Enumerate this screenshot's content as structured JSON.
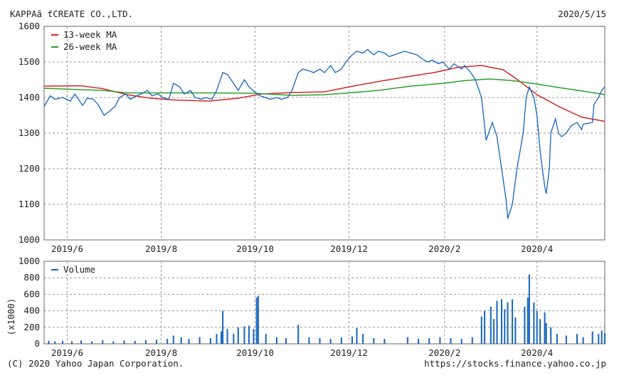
{
  "header": {
    "company": "KAPPAă ťCREATE CO.,LTD.",
    "date": "2020/5/15"
  },
  "footer": {
    "copyright": "(C) 2020 Yahoo Japan Corporation.",
    "url": "https://stocks.finance.yahoo.co.jp"
  },
  "colors": {
    "price": "#1565c0",
    "ma13": "#d62728",
    "ma26": "#2ca02c",
    "volume": "#1565c0",
    "grid": "#9a9a9a"
  },
  "chart_data": [
    {
      "type": "line",
      "yticks": [
        1000,
        1100,
        1200,
        1300,
        1400,
        1500,
        1600
      ],
      "ylim": [
        1000,
        1600
      ],
      "xticks": [
        "2019/6",
        "2019/8",
        "2019/10",
        "2019/12",
        "2020/2",
        "2020/4"
      ],
      "xtick_dates": [
        "2019-06-01",
        "2019-08-01",
        "2019-10-01",
        "2019-12-01",
        "2020-02-01",
        "2020-04-01"
      ],
      "xlim": [
        "2019-05-17",
        "2020-05-15"
      ],
      "grid": true,
      "legend": "top-left",
      "series": [
        {
          "name": "13-week MA",
          "points": [
            [
              "2019-05-17",
              1432
            ],
            [
              "2019-06-10",
              1433
            ],
            [
              "2019-06-24",
              1425
            ],
            [
              "2019-07-10",
              1408
            ],
            [
              "2019-07-25",
              1398
            ],
            [
              "2019-08-10",
              1393
            ],
            [
              "2019-09-01",
              1390
            ],
            [
              "2019-09-20",
              1398
            ],
            [
              "2019-10-05",
              1410
            ],
            [
              "2019-10-25",
              1414
            ],
            [
              "2019-11-15",
              1416
            ],
            [
              "2019-12-01",
              1430
            ],
            [
              "2019-12-20",
              1445
            ],
            [
              "2020-01-10",
              1460
            ],
            [
              "2020-01-25",
              1470
            ],
            [
              "2020-02-10",
              1485
            ],
            [
              "2020-02-25",
              1490
            ],
            [
              "2020-03-10",
              1478
            ],
            [
              "2020-03-20",
              1448
            ],
            [
              "2020-04-01",
              1408
            ],
            [
              "2020-04-15",
              1375
            ],
            [
              "2020-04-30",
              1345
            ],
            [
              "2020-05-15",
              1333
            ]
          ]
        },
        {
          "name": "26-week MA",
          "points": [
            [
              "2019-05-17",
              1426
            ],
            [
              "2019-06-10",
              1422
            ],
            [
              "2019-06-24",
              1420
            ],
            [
              "2019-07-10",
              1413
            ],
            [
              "2019-08-01",
              1413
            ],
            [
              "2019-09-01",
              1413
            ],
            [
              "2019-10-01",
              1412
            ],
            [
              "2019-10-25",
              1406
            ],
            [
              "2019-11-15",
              1408
            ],
            [
              "2019-12-01",
              1413
            ],
            [
              "2019-12-20",
              1420
            ],
            [
              "2020-01-10",
              1432
            ],
            [
              "2020-01-31",
              1440
            ],
            [
              "2020-02-15",
              1448
            ],
            [
              "2020-03-01",
              1452
            ],
            [
              "2020-03-15",
              1448
            ],
            [
              "2020-04-01",
              1438
            ],
            [
              "2020-04-15",
              1428
            ],
            [
              "2020-05-01",
              1418
            ],
            [
              "2020-05-15",
              1408
            ]
          ]
        },
        {
          "name": "",
          "points": [
            [
              "2019-05-17",
              1375
            ],
            [
              "2019-05-21",
              1405
            ],
            [
              "2019-05-24",
              1395
            ],
            [
              "2019-05-29",
              1400
            ],
            [
              "2019-06-03",
              1390
            ],
            [
              "2019-06-06",
              1410
            ],
            [
              "2019-06-11",
              1378
            ],
            [
              "2019-06-14",
              1398
            ],
            [
              "2019-06-18",
              1395
            ],
            [
              "2019-06-21",
              1380
            ],
            [
              "2019-06-25",
              1350
            ],
            [
              "2019-06-28",
              1360
            ],
            [
              "2019-07-02",
              1375
            ],
            [
              "2019-07-05",
              1400
            ],
            [
              "2019-07-09",
              1410
            ],
            [
              "2019-07-12",
              1395
            ],
            [
              "2019-07-16",
              1405
            ],
            [
              "2019-07-19",
              1410
            ],
            [
              "2019-07-23",
              1420
            ],
            [
              "2019-07-26",
              1405
            ],
            [
              "2019-07-30",
              1410
            ],
            [
              "2019-08-02",
              1400
            ],
            [
              "2019-08-06",
              1395
            ],
            [
              "2019-08-09",
              1440
            ],
            [
              "2019-08-13",
              1430
            ],
            [
              "2019-08-16",
              1410
            ],
            [
              "2019-08-20",
              1420
            ],
            [
              "2019-08-23",
              1400
            ],
            [
              "2019-08-27",
              1395
            ],
            [
              "2019-08-30",
              1400
            ],
            [
              "2019-09-03",
              1395
            ],
            [
              "2019-09-06",
              1420
            ],
            [
              "2019-09-10",
              1470
            ],
            [
              "2019-09-13",
              1465
            ],
            [
              "2019-09-17",
              1440
            ],
            [
              "2019-09-20",
              1420
            ],
            [
              "2019-09-24",
              1450
            ],
            [
              "2019-09-27",
              1430
            ],
            [
              "2019-10-01",
              1415
            ],
            [
              "2019-10-04",
              1405
            ],
            [
              "2019-10-08",
              1400
            ],
            [
              "2019-10-11",
              1395
            ],
            [
              "2019-10-15",
              1400
            ],
            [
              "2019-10-18",
              1395
            ],
            [
              "2019-10-22",
              1400
            ],
            [
              "2019-10-25",
              1420
            ],
            [
              "2019-10-29",
              1470
            ],
            [
              "2019-11-01",
              1480
            ],
            [
              "2019-11-05",
              1475
            ],
            [
              "2019-11-08",
              1470
            ],
            [
              "2019-11-12",
              1480
            ],
            [
              "2019-11-15",
              1470
            ],
            [
              "2019-11-19",
              1490
            ],
            [
              "2019-11-22",
              1470
            ],
            [
              "2019-11-26",
              1480
            ],
            [
              "2019-11-29",
              1500
            ],
            [
              "2019-12-03",
              1520
            ],
            [
              "2019-12-06",
              1530
            ],
            [
              "2019-12-10",
              1525
            ],
            [
              "2019-12-13",
              1535
            ],
            [
              "2019-12-17",
              1520
            ],
            [
              "2019-12-20",
              1530
            ],
            [
              "2019-12-24",
              1525
            ],
            [
              "2019-12-27",
              1515
            ],
            [
              "2020-01-06",
              1530
            ],
            [
              "2020-01-10",
              1525
            ],
            [
              "2020-01-14",
              1520
            ],
            [
              "2020-01-17",
              1510
            ],
            [
              "2020-01-21",
              1500
            ],
            [
              "2020-01-24",
              1505
            ],
            [
              "2020-01-28",
              1495
            ],
            [
              "2020-01-31",
              1500
            ],
            [
              "2020-02-04",
              1480
            ],
            [
              "2020-02-07",
              1495
            ],
            [
              "2020-02-12",
              1480
            ],
            [
              "2020-02-14",
              1490
            ],
            [
              "2020-02-18",
              1470
            ],
            [
              "2020-02-21",
              1450
            ],
            [
              "2020-02-25",
              1400
            ],
            [
              "2020-02-28",
              1280
            ],
            [
              "2020-03-03",
              1330
            ],
            [
              "2020-03-06",
              1290
            ],
            [
              "2020-03-09",
              1200
            ],
            [
              "2020-03-12",
              1110
            ],
            [
              "2020-03-13",
              1060
            ],
            [
              "2020-03-16",
              1100
            ],
            [
              "2020-03-19",
              1200
            ],
            [
              "2020-03-23",
              1300
            ],
            [
              "2020-03-25",
              1400
            ],
            [
              "2020-03-27",
              1430
            ],
            [
              "2020-03-30",
              1400
            ],
            [
              "2020-04-01",
              1350
            ],
            [
              "2020-04-03",
              1250
            ],
            [
              "2020-04-06",
              1150
            ],
            [
              "2020-04-07",
              1130
            ],
            [
              "2020-04-09",
              1200
            ],
            [
              "2020-04-10",
              1300
            ],
            [
              "2020-04-13",
              1340
            ],
            [
              "2020-04-15",
              1300
            ],
            [
              "2020-04-17",
              1290
            ],
            [
              "2020-04-20",
              1300
            ],
            [
              "2020-04-23",
              1320
            ],
            [
              "2020-04-27",
              1330
            ],
            [
              "2020-04-30",
              1310
            ],
            [
              "2020-05-01",
              1325
            ],
            [
              "2020-05-07",
              1330
            ],
            [
              "2020-05-08",
              1380
            ],
            [
              "2020-05-11",
              1400
            ],
            [
              "2020-05-13",
              1420
            ],
            [
              "2020-05-15",
              1430
            ]
          ]
        }
      ]
    },
    {
      "type": "bar",
      "ylabel": "(x1000)",
      "yticks": [
        0,
        200,
        400,
        600,
        800,
        1000
      ],
      "ylim": [
        0,
        1000
      ],
      "xticks": [
        "2019/6",
        "2019/8",
        "2019/10",
        "2019/12",
        "2020/2",
        "2020/4"
      ],
      "xtick_dates": [
        "2019-06-01",
        "2019-08-01",
        "2019-10-01",
        "2019-12-01",
        "2020-02-01",
        "2020-04-01"
      ],
      "xlim": [
        "2019-05-17",
        "2020-05-15"
      ],
      "grid": true,
      "legend": "top-left",
      "series": [
        {
          "name": "Volume",
          "points": [
            [
              "2019-05-20",
              40
            ],
            [
              "2019-05-24",
              30
            ],
            [
              "2019-05-29",
              35
            ],
            [
              "2019-06-04",
              30
            ],
            [
              "2019-06-10",
              40
            ],
            [
              "2019-06-17",
              30
            ],
            [
              "2019-06-24",
              45
            ],
            [
              "2019-07-01",
              30
            ],
            [
              "2019-07-08",
              40
            ],
            [
              "2019-07-15",
              35
            ],
            [
              "2019-07-22",
              45
            ],
            [
              "2019-07-29",
              50
            ],
            [
              "2019-08-05",
              60
            ],
            [
              "2019-08-09",
              100
            ],
            [
              "2019-08-14",
              80
            ],
            [
              "2019-08-19",
              60
            ],
            [
              "2019-08-26",
              80
            ],
            [
              "2019-09-02",
              70
            ],
            [
              "2019-09-06",
              120
            ],
            [
              "2019-09-09",
              150
            ],
            [
              "2019-09-10",
              400
            ],
            [
              "2019-09-13",
              180
            ],
            [
              "2019-09-17",
              120
            ],
            [
              "2019-09-20",
              200
            ],
            [
              "2019-09-24",
              210
            ],
            [
              "2019-09-27",
              220
            ],
            [
              "2019-09-30",
              180
            ],
            [
              "2019-10-02",
              560
            ],
            [
              "2019-10-03",
              580
            ],
            [
              "2019-10-08",
              120
            ],
            [
              "2019-10-15",
              80
            ],
            [
              "2019-10-21",
              70
            ],
            [
              "2019-10-29",
              230
            ],
            [
              "2019-11-05",
              80
            ],
            [
              "2019-11-12",
              70
            ],
            [
              "2019-11-19",
              60
            ],
            [
              "2019-11-26",
              80
            ],
            [
              "2019-12-03",
              90
            ],
            [
              "2019-12-06",
              190
            ],
            [
              "2019-12-10",
              120
            ],
            [
              "2019-12-17",
              70
            ],
            [
              "2019-12-24",
              60
            ],
            [
              "2020-01-08",
              80
            ],
            [
              "2020-01-15",
              60
            ],
            [
              "2020-01-22",
              70
            ],
            [
              "2020-01-29",
              80
            ],
            [
              "2020-02-05",
              70
            ],
            [
              "2020-02-12",
              60
            ],
            [
              "2020-02-19",
              80
            ],
            [
              "2020-02-25",
              330
            ],
            [
              "2020-02-27",
              400
            ],
            [
              "2020-03-02",
              450
            ],
            [
              "2020-03-04",
              300
            ],
            [
              "2020-03-06",
              520
            ],
            [
              "2020-03-09",
              540
            ],
            [
              "2020-03-11",
              420
            ],
            [
              "2020-03-13",
              500
            ],
            [
              "2020-03-16",
              540
            ],
            [
              "2020-03-18",
              320
            ],
            [
              "2020-03-24",
              450
            ],
            [
              "2020-03-26",
              560
            ],
            [
              "2020-03-27",
              840
            ],
            [
              "2020-03-30",
              500
            ],
            [
              "2020-04-01",
              400
            ],
            [
              "2020-04-03",
              300
            ],
            [
              "2020-04-06",
              380
            ],
            [
              "2020-04-07",
              250
            ],
            [
              "2020-04-10",
              200
            ],
            [
              "2020-04-14",
              120
            ],
            [
              "2020-04-20",
              100
            ],
            [
              "2020-04-27",
              120
            ],
            [
              "2020-05-01",
              80
            ],
            [
              "2020-05-07",
              150
            ],
            [
              "2020-05-11",
              120
            ],
            [
              "2020-05-13",
              160
            ],
            [
              "2020-05-15",
              130
            ]
          ]
        }
      ]
    }
  ]
}
